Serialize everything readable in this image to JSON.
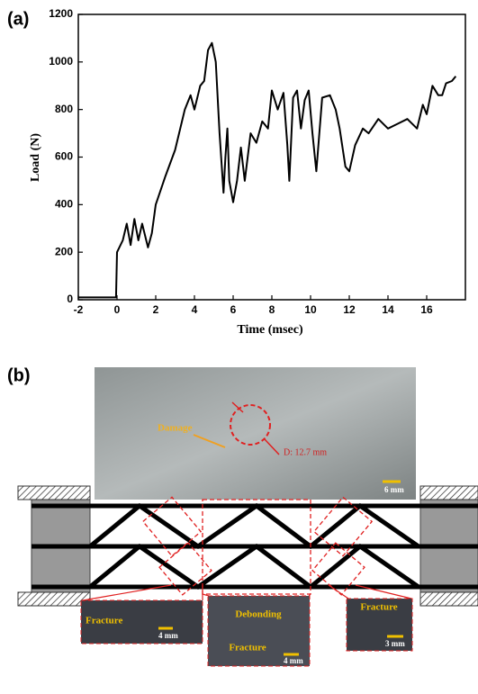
{
  "chart_data": {
    "type": "line",
    "panel_label": "(a)",
    "xlabel": "Time (msec)",
    "ylabel": "Load (N)",
    "x": [
      -2,
      -0.05,
      0,
      0.3,
      0.5,
      0.7,
      0.9,
      1.1,
      1.3,
      1.6,
      1.8,
      2,
      2.5,
      3,
      3.5,
      3.8,
      4,
      4.3,
      4.5,
      4.7,
      4.9,
      5.1,
      5.3,
      5.5,
      5.6,
      5.7,
      5.8,
      6,
      6.2,
      6.4,
      6.6,
      6.9,
      7.2,
      7.5,
      7.8,
      8,
      8.3,
      8.6,
      8.8,
      8.9,
      9.1,
      9.3,
      9.5,
      9.7,
      9.9,
      10.1,
      10.3,
      10.6,
      11,
      11.3,
      11.5,
      11.8,
      12,
      12.3,
      12.7,
      13,
      13.5,
      14,
      14.5,
      15,
      15.5,
      15.8,
      16,
      16.3,
      16.6,
      16.8,
      17,
      17.3,
      17.5
    ],
    "series": [
      {
        "color": "#000000",
        "values": [
          10,
          10,
          200,
          250,
          320,
          230,
          340,
          250,
          320,
          220,
          280,
          400,
          520,
          630,
          800,
          860,
          800,
          900,
          920,
          1050,
          1080,
          1000,
          700,
          450,
          600,
          720,
          500,
          410,
          500,
          640,
          500,
          700,
          660,
          750,
          720,
          880,
          800,
          870,
          650,
          500,
          850,
          880,
          720,
          840,
          880,
          700,
          540,
          850,
          860,
          800,
          720,
          560,
          540,
          650,
          720,
          700,
          760,
          720,
          740,
          760,
          720,
          820,
          780,
          900,
          860,
          860,
          910,
          920,
          940
        ]
      }
    ],
    "xlim": [
      -2,
      18
    ],
    "ylim": [
      0,
      1200
    ],
    "xticks": [
      -2,
      0,
      2,
      4,
      6,
      8,
      10,
      12,
      14,
      16
    ],
    "yticks": [
      0,
      200,
      400,
      600,
      800,
      1000,
      1200
    ]
  },
  "panel_b": {
    "label": "(b)",
    "damage": "Damage",
    "diameter": "D: 12.7 mm",
    "scale": "6 mm",
    "insets": [
      {
        "labels": [
          "Fracture"
        ],
        "scale": "4 mm"
      },
      {
        "labels": [
          "Debonding",
          "Fracture"
        ],
        "scale": "4 mm"
      },
      {
        "labels": [
          "Fracture"
        ],
        "scale": "3 mm"
      }
    ]
  }
}
